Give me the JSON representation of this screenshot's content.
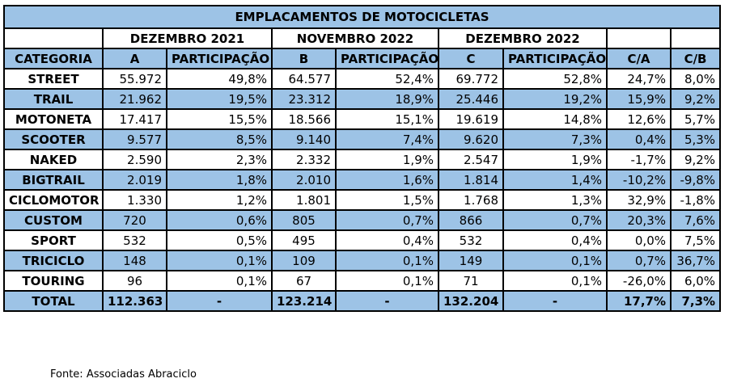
{
  "table": {
    "title": "EMPLACAMENTOS DE MOTOCICLETAS",
    "periods": [
      "DEZEMBRO 2021",
      "NOVEMBRO 2022",
      "DEZEMBRO 2022"
    ],
    "headers": [
      "CATEGORIA",
      "A",
      "PARTICIPAÇÃO",
      "B",
      "PARTICIPAÇÃO",
      "C",
      "PARTICIPAÇÃO",
      "C/A",
      "C/B"
    ],
    "rows": [
      [
        "STREET",
        "55.972",
        "49,8%",
        "64.577",
        "52,4%",
        "69.772",
        "52,8%",
        "24,7%",
        "8,0%"
      ],
      [
        "TRAIL",
        "21.962",
        "19,5%",
        "23.312",
        "18,9%",
        "25.446",
        "19,2%",
        "15,9%",
        "9,2%"
      ],
      [
        "MOTONETA",
        "17.417",
        "15,5%",
        "18.566",
        "15,1%",
        "19.619",
        "14,8%",
        "12,6%",
        "5,7%"
      ],
      [
        "SCOOTER",
        "9.577",
        "8,5%",
        "9.140",
        "7,4%",
        "9.620",
        "7,3%",
        "0,4%",
        "5,3%"
      ],
      [
        "NAKED",
        "2.590",
        "2,3%",
        "2.332",
        "1,9%",
        "2.547",
        "1,9%",
        "-1,7%",
        "9,2%"
      ],
      [
        "BIGTRAIL",
        "2.019",
        "1,8%",
        "2.010",
        "1,6%",
        "1.814",
        "1,4%",
        "-10,2%",
        "-9,8%"
      ],
      [
        "CICLOMOTOR",
        "1.330",
        "1,2%",
        "1.801",
        "1,5%",
        "1.768",
        "1,3%",
        "32,9%",
        "-1,8%"
      ],
      [
        "CUSTOM",
        "720",
        "0,6%",
        "805",
        "0,7%",
        "866",
        "0,7%",
        "20,3%",
        "7,6%"
      ],
      [
        "SPORT",
        "532",
        "0,5%",
        "495",
        "0,4%",
        "532",
        "0,4%",
        "0,0%",
        "7,5%"
      ],
      [
        "TRICICLO",
        "148",
        "0,1%",
        "109",
        "0,1%",
        "149",
        "0,1%",
        "0,7%",
        "36,7%"
      ],
      [
        "TOURING",
        "96",
        "0,1%",
        "67",
        "0,1%",
        "71",
        "0,1%",
        "-26,0%",
        "6,0%"
      ]
    ],
    "total": [
      "TOTAL",
      "112.363",
      "-",
      "123.214",
      "-",
      "132.204",
      "-",
      "17,7%",
      "7,3%"
    ]
  },
  "source": "Fonte: Associadas Abraciclo",
  "colors": {
    "header_blue": "#9dc3e6",
    "white": "#ffffff",
    "border": "#000000"
  }
}
